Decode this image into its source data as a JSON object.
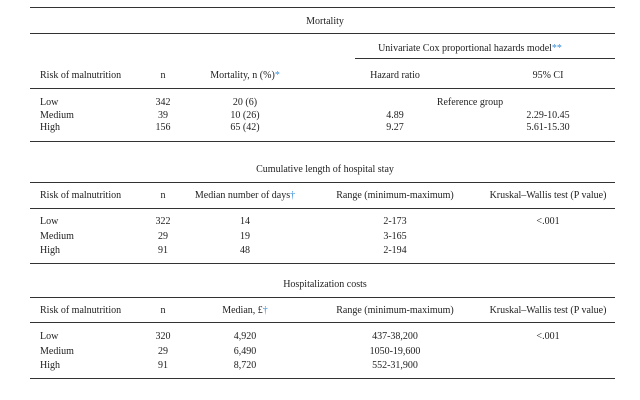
{
  "sections": [
    {
      "title": "Mortality",
      "subheader": {
        "text": "Univariate Cox proportional hazards model",
        "note": "**"
      },
      "columns": [
        {
          "text": "Risk of malnutrition"
        },
        {
          "text": "n"
        },
        {
          "text": "Mortality, n (%)",
          "note": "*"
        },
        {
          "text": "Hazard ratio"
        },
        {
          "text": "95% CI"
        }
      ],
      "rows": [
        {
          "cells": [
            "Low",
            "342",
            "20 (6)"
          ],
          "span": "Reference group"
        },
        {
          "cells": [
            "Medium",
            "39",
            "10 (26)",
            "4.89",
            "2.29-10.45"
          ]
        },
        {
          "cells": [
            "High",
            "156",
            "65 (42)",
            "9.27",
            "5.61-15.30"
          ]
        }
      ]
    },
    {
      "title": "Cumulative length of hospital stay",
      "columns": [
        {
          "text": "Risk of malnutrition"
        },
        {
          "text": "n"
        },
        {
          "text": "Median number of days",
          "note": "†"
        },
        {
          "text": "Range (minimum-maximum)"
        },
        {
          "text": "Kruskal–Wallis test (P value)"
        }
      ],
      "rows": [
        {
          "cells": [
            "Low",
            "322",
            "14",
            "2-173",
            "<.001"
          ]
        },
        {
          "cells": [
            "Medium",
            "29",
            "19",
            "3-165"
          ]
        },
        {
          "cells": [
            "High",
            "91",
            "48",
            "2-194"
          ]
        }
      ]
    },
    {
      "title": "Hospitalization costs",
      "columns": [
        {
          "text": "Risk of malnutrition"
        },
        {
          "text": "n"
        },
        {
          "text": "Median, £",
          "note": "†"
        },
        {
          "text": "Range (minimum-maximum)"
        },
        {
          "text": "Kruskal–Wallis test (P value)"
        }
      ],
      "rows": [
        {
          "cells": [
            "Low",
            "320",
            "4,920",
            "437-38,200",
            "<.001"
          ]
        },
        {
          "cells": [
            "Medium",
            "29",
            "6,490",
            "1050-19,600"
          ]
        },
        {
          "cells": [
            "High",
            "91",
            "8,720",
            "552-31,900"
          ]
        }
      ]
    }
  ]
}
